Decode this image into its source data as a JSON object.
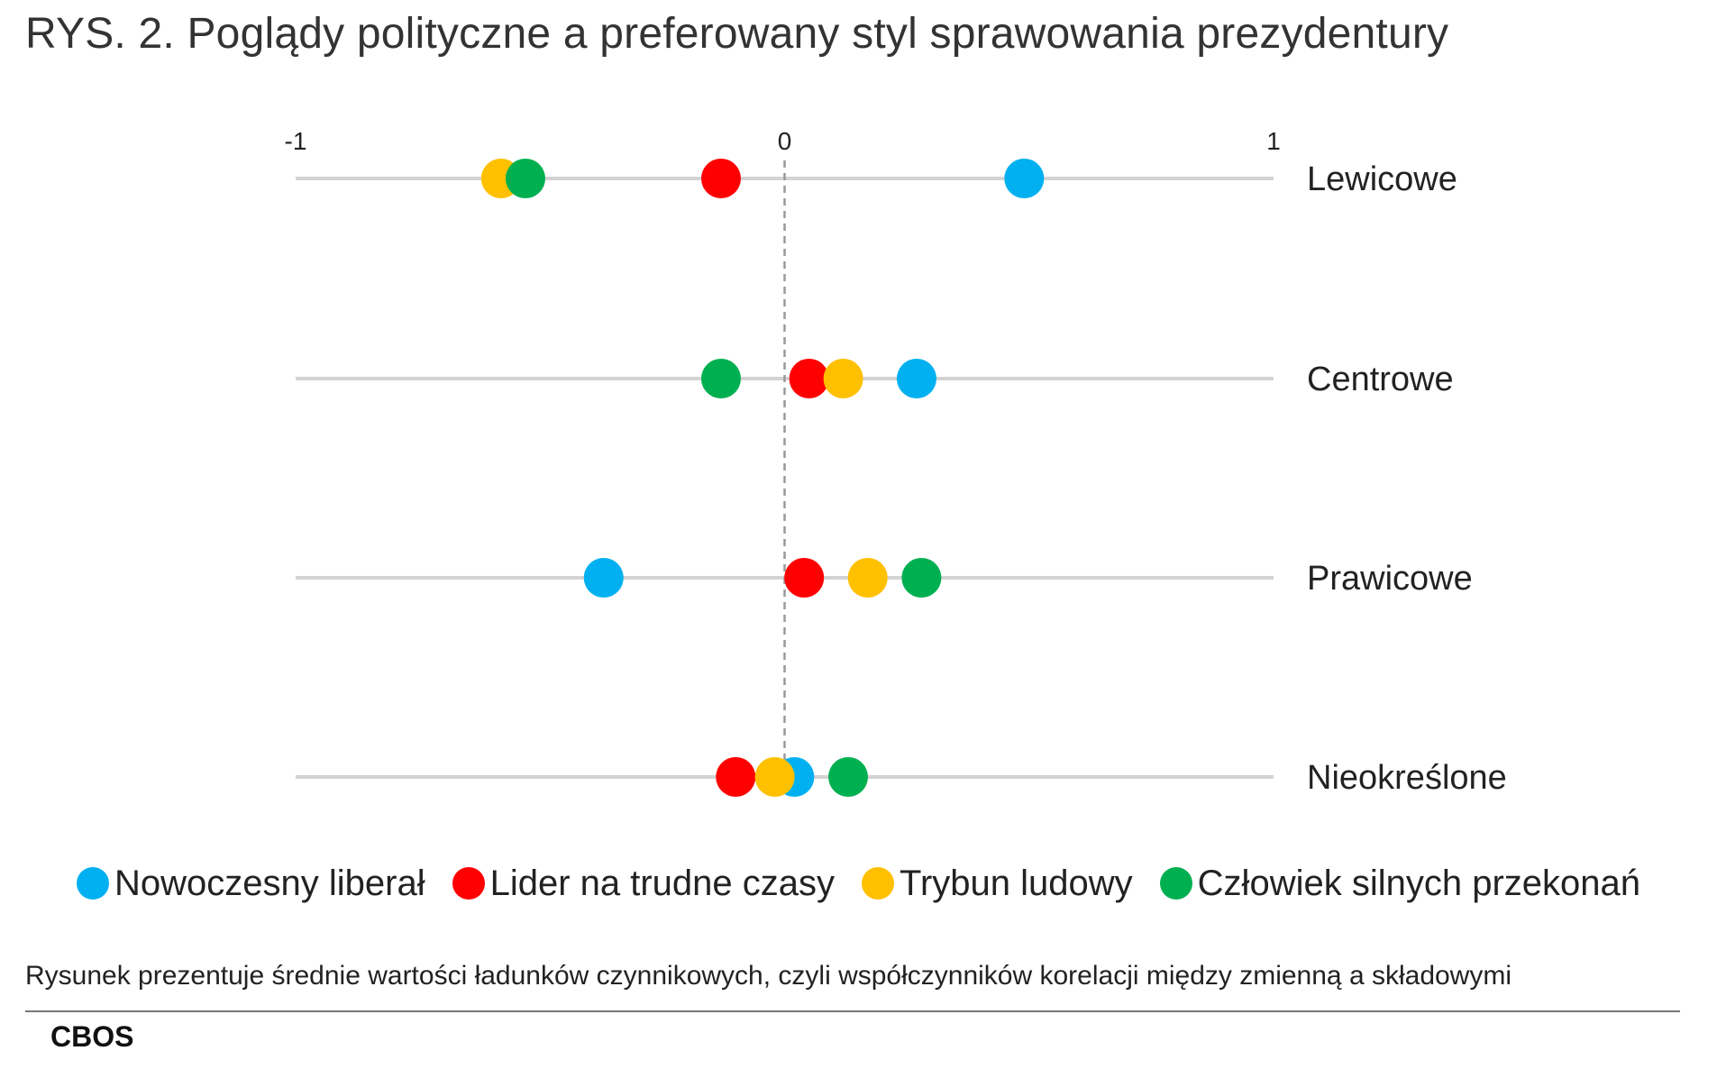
{
  "title": "RYS. 2. Poglądy polityczne a preferowany styl sprawowania prezydentury",
  "chart_data": {
    "type": "scatter",
    "xlim": [
      -1,
      1
    ],
    "x_ticks": [
      "-1",
      "0",
      "1"
    ],
    "x_tick_values": [
      -1,
      0,
      1
    ],
    "categories": [
      "Lewicowe",
      "Centrowe",
      "Prawicowe",
      "Nieokreślone"
    ],
    "series": [
      {
        "name": "Nowoczesny liberał",
        "color": "#00b0f0",
        "values": [
          0.49,
          0.27,
          -0.37,
          0.02
        ]
      },
      {
        "name": "Lider na trudne czasy",
        "color": "#ff0000",
        "values": [
          -0.13,
          0.05,
          0.04,
          -0.1
        ]
      },
      {
        "name": "Trybun ludowy",
        "color": "#ffc000",
        "values": [
          -0.58,
          0.12,
          0.17,
          -0.02
        ]
      },
      {
        "name": "Człowiek silnych przekonań",
        "color": "#00b050",
        "values": [
          -0.53,
          -0.13,
          0.28,
          0.13
        ]
      }
    ],
    "zero_line": "dashed",
    "legend_position": "bottom"
  },
  "note": "Rysunek prezentuje średnie wartości ładunków czynnikowych, czyli współczynników korelacji między zmienną a składowymi",
  "source": "CBOS"
}
